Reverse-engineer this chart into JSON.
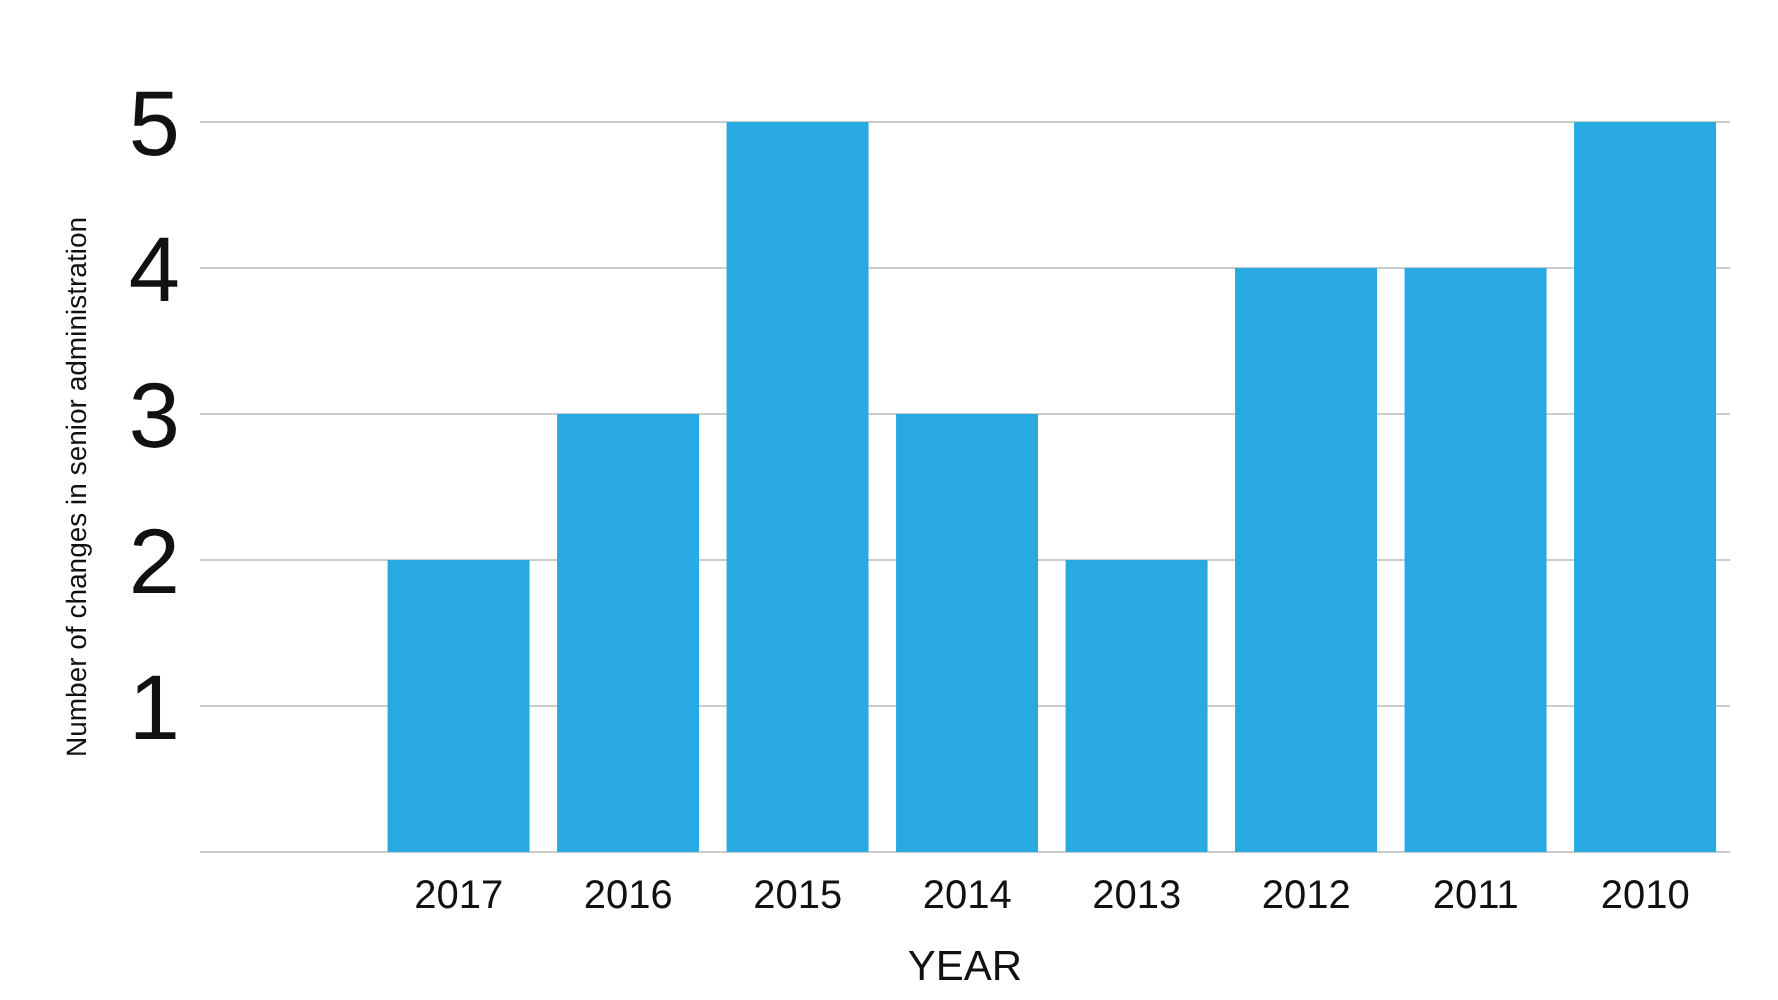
{
  "chart_data": {
    "type": "bar",
    "xlabel": "YEAR",
    "ylabel": "Number of changes in senior administration",
    "categories": [
      "2017",
      "2016",
      "2015",
      "2014",
      "2013",
      "2012",
      "2011",
      "2010"
    ],
    "values": [
      2,
      3,
      5,
      3,
      2,
      4,
      4,
      5
    ],
    "color": "#29a9e1",
    "ylim": [
      0,
      5
    ],
    "yticks": [
      1,
      2,
      3,
      4,
      5
    ],
    "grid": "y"
  }
}
